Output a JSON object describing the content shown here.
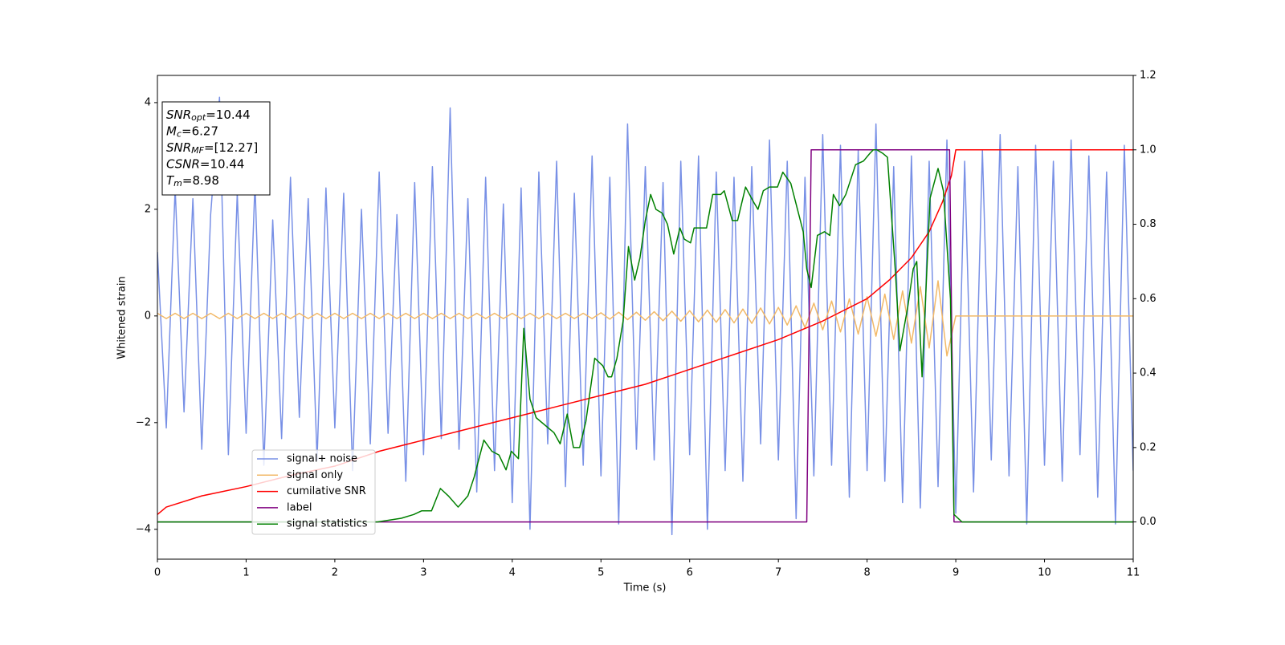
{
  "chart_data": {
    "type": "line",
    "xlabel": "Time (s)",
    "ylabel": "Whitened strain",
    "xlim": [
      0,
      11
    ],
    "xticks": [
      0,
      1,
      2,
      3,
      4,
      5,
      6,
      7,
      8,
      9,
      10,
      11
    ],
    "ylim": [
      -4.56,
      4.51
    ],
    "yticks": [
      {
        "value": -4,
        "label": "−4"
      },
      {
        "value": -2,
        "label": "−2"
      },
      0,
      2,
      4
    ],
    "y2lim": [
      -0.1,
      1.2
    ],
    "y2ticks": [
      {
        "value": 0,
        "label": "0.0"
      },
      {
        "value": 0.2,
        "label": "0.2"
      },
      {
        "value": 0.4,
        "label": "0.4"
      },
      {
        "value": 0.6,
        "label": "0.6"
      },
      {
        "value": 0.8,
        "label": "0.8"
      },
      {
        "value": 1.0,
        "label": "1.0"
      },
      {
        "value": 1.2,
        "label": "1.2"
      }
    ],
    "legend": true,
    "annotations": [
      {
        "symbol": "SNR",
        "sub": "opt",
        "text": "=10.44"
      },
      {
        "symbol": "M",
        "sub": "c",
        "text": "=6.27"
      },
      {
        "symbol": "SNR",
        "sub": "MF",
        "text": "=[12.27]"
      },
      {
        "symbol": "CSNR",
        "text": "=10.44"
      },
      {
        "symbol": "T",
        "sub": "m",
        "text": "=8.98"
      }
    ],
    "x": [
      0,
      0.1,
      0.2,
      0.3,
      0.4,
      0.5,
      0.6,
      0.7,
      0.8,
      0.9,
      1,
      1.1,
      1.2,
      1.3,
      1.4,
      1.5,
      1.6,
      1.7,
      1.8,
      1.9,
      2,
      2.1,
      2.2,
      2.3,
      2.4,
      2.5,
      2.6,
      2.7,
      2.8,
      2.9,
      3,
      3.1,
      3.2,
      3.3,
      3.4,
      3.5,
      3.6,
      3.7,
      3.8,
      3.9,
      4,
      4.1,
      4.2,
      4.3,
      4.4,
      4.5,
      4.6,
      4.7,
      4.8,
      4.9,
      5,
      5.1,
      5.2,
      5.3,
      5.4,
      5.5,
      5.6,
      5.7,
      5.8,
      5.9,
      6,
      6.1,
      6.2,
      6.3,
      6.4,
      6.5,
      6.6,
      6.7,
      6.8,
      6.9,
      7,
      7.1,
      7.2,
      7.3,
      7.4,
      7.5,
      7.6,
      7.7,
      7.8,
      7.9,
      8,
      8.1,
      8.2,
      8.3,
      8.4,
      8.5,
      8.6,
      8.7,
      8.8,
      8.9,
      9,
      9.1,
      9.2,
      9.3,
      9.4,
      9.5,
      9.6,
      9.7,
      9.8,
      9.9,
      10,
      10.1,
      10.2,
      10.3,
      10.4,
      10.5,
      10.6,
      10.7,
      10.8,
      10.9,
      11
    ],
    "series": [
      {
        "name": "signal+ noise",
        "color": "#7890e6",
        "values": [
          1.2,
          -2.1,
          2.4,
          -1.8,
          2.2,
          -2.5,
          1.9,
          4.1,
          -2.6,
          2.3,
          -2.2,
          2.5,
          -2.8,
          1.8,
          -2.3,
          2.6,
          -1.9,
          2.2,
          -2.7,
          2.4,
          -2.1,
          2.3,
          -2.9,
          2.0,
          -2.4,
          2.7,
          -2.2,
          1.9,
          -3.1,
          2.5,
          -2.6,
          2.8,
          -2.3,
          3.9,
          -2.5,
          2.2,
          -3.3,
          2.6,
          -2.9,
          2.1,
          -3.5,
          2.4,
          -4.0,
          2.7,
          -2.4,
          2.9,
          -3.2,
          2.3,
          -2.8,
          3.0,
          -3.0,
          2.6,
          -3.9,
          3.6,
          -2.5,
          2.8,
          -2.7,
          2.5,
          -4.1,
          2.9,
          -2.6,
          3.0,
          -4.0,
          2.7,
          -2.9,
          2.6,
          -3.1,
          2.8,
          -2.4,
          3.3,
          -2.7,
          2.9,
          -3.8,
          2.6,
          -3.0,
          3.4,
          -2.8,
          3.2,
          -3.4,
          3.1,
          -2.9,
          3.6,
          -3.1,
          2.8,
          -3.5,
          3.0,
          -3.6,
          2.9,
          -3.2,
          3.3,
          -3.7,
          2.9,
          -3.3,
          3.1,
          -2.7,
          3.4,
          -3.0,
          2.8,
          -3.9,
          3.2,
          -2.8,
          2.9,
          -3.1,
          3.3,
          -2.6,
          3.0,
          -3.4,
          2.7,
          -3.9,
          3.2,
          -2.9
        ]
      },
      {
        "name": "signal only",
        "color": "#f2b968",
        "values": [
          0.05,
          -0.05,
          0.05,
          -0.05,
          0.05,
          -0.05,
          0.05,
          -0.05,
          0.05,
          -0.05,
          0.05,
          -0.05,
          0.05,
          -0.05,
          0.05,
          -0.05,
          0.05,
          -0.05,
          0.05,
          -0.05,
          0.05,
          -0.05,
          0.05,
          -0.05,
          0.05,
          -0.05,
          0.05,
          -0.05,
          0.05,
          -0.05,
          0.05,
          -0.05,
          0.05,
          -0.05,
          0.05,
          -0.05,
          0.05,
          -0.05,
          0.05,
          -0.05,
          0.05,
          -0.05,
          0.05,
          -0.05,
          0.05,
          -0.05,
          0.05,
          -0.05,
          0.05,
          -0.05,
          0.06,
          -0.06,
          0.07,
          -0.07,
          0.07,
          -0.08,
          0.08,
          -0.09,
          0.09,
          -0.1,
          0.1,
          -0.11,
          0.11,
          -0.12,
          0.12,
          -0.13,
          0.13,
          -0.14,
          0.15,
          -0.15,
          0.16,
          -0.17,
          0.19,
          -0.22,
          0.24,
          -0.26,
          0.28,
          -0.3,
          0.32,
          -0.34,
          0.36,
          -0.38,
          0.41,
          -0.44,
          0.47,
          -0.51,
          0.55,
          -0.6,
          0.66,
          -0.75,
          0,
          0,
          0,
          0,
          0,
          0,
          0,
          0,
          0,
          0,
          0,
          0,
          0,
          0,
          0,
          0,
          0,
          0,
          0,
          0,
          0
        ]
      },
      {
        "name": "cumilative SNR",
        "color": "#ff0000",
        "axis": "y2",
        "x": [
          0,
          0.1,
          0.5,
          1,
          1.5,
          2,
          2.5,
          3,
          3.5,
          4,
          4.5,
          5,
          5.5,
          6,
          6.5,
          7,
          7.5,
          8,
          8.25,
          8.5,
          8.7,
          8.85,
          8.95,
          9,
          11
        ],
        "values": [
          0.02,
          0.04,
          0.07,
          0.095,
          0.125,
          0.15,
          0.19,
          0.22,
          0.25,
          0.28,
          0.31,
          0.34,
          0.37,
          0.41,
          0.45,
          0.49,
          0.54,
          0.6,
          0.65,
          0.71,
          0.78,
          0.86,
          0.93,
          1.0,
          1.0
        ]
      },
      {
        "name": "label",
        "color": "#800080",
        "axis": "y2",
        "x": [
          0,
          7.32,
          7.37,
          8.93,
          8.98,
          11
        ],
        "values": [
          0,
          0,
          1,
          1,
          0,
          0
        ]
      },
      {
        "name": "signal statistics",
        "color": "#008000",
        "axis": "y2",
        "x": [
          0,
          2.48,
          2.75,
          2.89,
          2.98,
          3.09,
          3.19,
          3.28,
          3.39,
          3.5,
          3.57,
          3.68,
          3.77,
          3.85,
          3.93,
          3.99,
          4.07,
          4.13,
          4.2,
          4.27,
          4.47,
          4.54,
          4.62,
          4.69,
          4.76,
          4.83,
          4.93,
          5.02,
          5.08,
          5.12,
          5.18,
          5.25,
          5.31,
          5.38,
          5.44,
          5.5,
          5.56,
          5.62,
          5.69,
          5.75,
          5.82,
          5.89,
          5.94,
          6.01,
          6.05,
          6.1,
          6.19,
          6.26,
          6.35,
          6.39,
          6.48,
          6.54,
          6.63,
          6.72,
          6.77,
          6.83,
          6.9,
          6.99,
          7.05,
          7.14,
          7.28,
          7.32,
          7.37,
          7.44,
          7.52,
          7.58,
          7.62,
          7.69,
          7.76,
          7.87,
          7.96,
          8.03,
          8.07,
          8.11,
          8.18,
          8.23,
          8.32,
          8.37,
          8.46,
          8.52,
          8.56,
          8.62,
          8.71,
          8.8,
          8.86,
          8.94,
          8.98,
          9.07,
          11
        ],
        "values": [
          0,
          0,
          0.01,
          0.02,
          0.03,
          0.03,
          0.09,
          0.07,
          0.04,
          0.07,
          0.12,
          0.22,
          0.19,
          0.18,
          0.14,
          0.19,
          0.17,
          0.52,
          0.33,
          0.28,
          0.24,
          0.21,
          0.29,
          0.2,
          0.2,
          0.27,
          0.44,
          0.42,
          0.39,
          0.39,
          0.44,
          0.54,
          0.74,
          0.65,
          0.71,
          0.81,
          0.88,
          0.84,
          0.83,
          0.8,
          0.72,
          0.79,
          0.76,
          0.75,
          0.79,
          0.79,
          0.79,
          0.88,
          0.88,
          0.89,
          0.81,
          0.81,
          0.9,
          0.86,
          0.84,
          0.89,
          0.9,
          0.9,
          0.94,
          0.91,
          0.78,
          0.68,
          0.63,
          0.77,
          0.78,
          0.77,
          0.88,
          0.85,
          0.88,
          0.96,
          0.97,
          0.99,
          1.0,
          1.0,
          0.99,
          0.98,
          0.67,
          0.46,
          0.58,
          0.68,
          0.7,
          0.39,
          0.87,
          0.95,
          0.89,
          0.6,
          0.02,
          0.0,
          0.0
        ]
      }
    ]
  }
}
